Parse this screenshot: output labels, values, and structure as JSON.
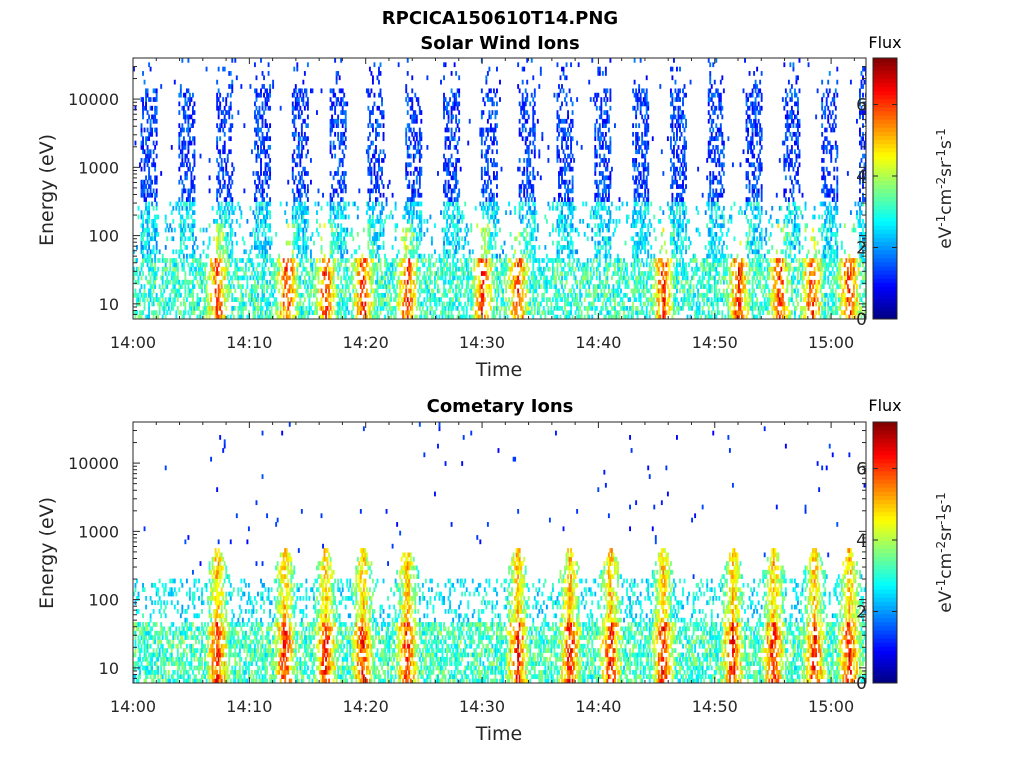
{
  "figure": {
    "title": "RPCICA150610T14.PNG"
  },
  "chart_data": [
    {
      "type": "heatmap",
      "title": "Solar Wind Ions",
      "xlabel": "Time",
      "ylabel": "Energy (eV)",
      "x_ticks": [
        "14:00",
        "14:10",
        "14:20",
        "14:30",
        "14:40",
        "14:50",
        "15:00"
      ],
      "x_range_minutes": [
        0,
        63
      ],
      "y_scale": "log",
      "y_ticks": [
        "10",
        "100",
        "1000",
        "10000"
      ],
      "y_range": [
        6,
        40000
      ],
      "colorbar": {
        "title": "Flux",
        "label": "eV-1cm-2sr-1s-1",
        "ticks": [
          "0",
          "2",
          "4",
          "6"
        ],
        "range": [
          0,
          7.3
        ],
        "colormap": "jet"
      },
      "scan_period_minutes": 3.25,
      "scan_start_minutes": 0.6,
      "low_energy_hotspots_minutes": [
        7.2,
        13.2,
        16.5,
        19.7,
        23.5,
        30,
        33,
        45.5,
        52,
        55.5,
        58.3,
        61.5
      ],
      "grid": false
    },
    {
      "type": "heatmap",
      "title": "Cometary Ions",
      "xlabel": "Time",
      "ylabel": "Energy (eV)",
      "x_ticks": [
        "14:00",
        "14:10",
        "14:20",
        "14:30",
        "14:40",
        "14:50",
        "15:00"
      ],
      "x_range_minutes": [
        0,
        63
      ],
      "y_scale": "log",
      "y_ticks": [
        "10",
        "100",
        "1000",
        "10000"
      ],
      "y_range": [
        6,
        40000
      ],
      "colorbar": {
        "title": "Flux",
        "label": "eV-1cm-2sr-1s-1",
        "ticks": [
          "0",
          "2",
          "4",
          "6"
        ],
        "range": [
          0,
          7.3
        ],
        "colormap": "jet"
      },
      "scan_period_minutes": 3.25,
      "scan_start_minutes": 0.6,
      "intense_bursts_minutes": [
        7.2,
        13,
        16.5,
        19.7,
        23.5,
        33,
        37.5,
        41,
        45.5,
        51.5,
        55,
        58.5,
        61.5
      ],
      "grid": false
    }
  ]
}
